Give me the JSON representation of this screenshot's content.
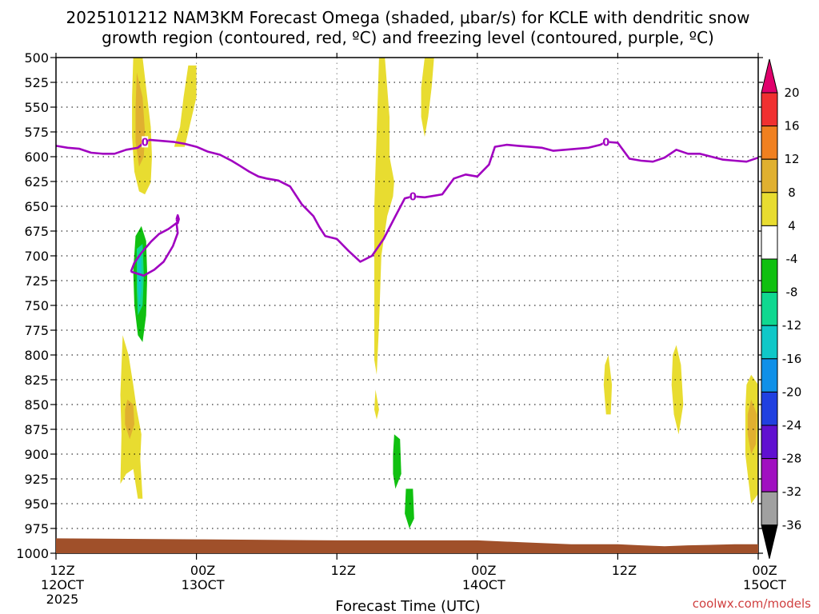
{
  "chart_data": {
    "type": "contour",
    "title_line1": "2025101212 NAM3KM Forecast Omega (shaded, μbar/s) for KCLE with dendritic snow",
    "title_line2": "growth region (contoured, red, ºC) and freezing level (contoured, purple, ºC)",
    "xlabel": "Forecast Time (UTC)",
    "credit": "coolwx.com/models",
    "y_ticks": [
      500,
      525,
      550,
      575,
      600,
      625,
      650,
      675,
      700,
      725,
      750,
      775,
      800,
      825,
      850,
      875,
      900,
      925,
      950,
      975,
      1000
    ],
    "y_range": [
      500,
      1000
    ],
    "x_range_hours": [
      0,
      60
    ],
    "x_ticks": [
      {
        "hour": 0,
        "line1": "12Z",
        "line2": "12OCT",
        "line3": "2025"
      },
      {
        "hour": 12,
        "line1": "00Z",
        "line2": "13OCT",
        "line3": ""
      },
      {
        "hour": 24,
        "line1": "12Z",
        "line2": "",
        "line3": ""
      },
      {
        "hour": 36,
        "line1": "00Z",
        "line2": "14OCT",
        "line3": ""
      },
      {
        "hour": 48,
        "line1": "12Z",
        "line2": "",
        "line3": ""
      },
      {
        "hour": 60,
        "line1": "00Z",
        "line2": "15OCT",
        "line3": ""
      }
    ],
    "colorbar": {
      "labels": [
        "20",
        "16",
        "12",
        "8",
        "4",
        "-4",
        "-8",
        "-12",
        "-16",
        "-20",
        "-24",
        "-28",
        "-32",
        "-36"
      ],
      "colors": [
        "#e0006c",
        "#f03030",
        "#f08020",
        "#e0b030",
        "#e8dc30",
        "#ffffff",
        "#10c010",
        "#10d890",
        "#10c8c8",
        "#1090e8",
        "#2040e0",
        "#6010d0",
        "#a010c0",
        "#a0a0a0",
        "#000000"
      ]
    },
    "freezing_level": {
      "color": "#a000c0",
      "label": "0",
      "points": [
        [
          0,
          589
        ],
        [
          1,
          591
        ],
        [
          2,
          592
        ],
        [
          3,
          596
        ],
        [
          4,
          597
        ],
        [
          5,
          597
        ],
        [
          6,
          593
        ],
        [
          7,
          591
        ],
        [
          7.6,
          585
        ],
        [
          8,
          583
        ],
        [
          9,
          584
        ],
        [
          10,
          585
        ],
        [
          11,
          587
        ],
        [
          12,
          590
        ],
        [
          13,
          595
        ],
        [
          14,
          598
        ],
        [
          15,
          604
        ],
        [
          15.7,
          609
        ],
        [
          16.5,
          615
        ],
        [
          17.3,
          620
        ],
        [
          18,
          622
        ],
        [
          19,
          624
        ],
        [
          20,
          630
        ],
        [
          21,
          648
        ],
        [
          22,
          660
        ],
        [
          22.5,
          671
        ],
        [
          23,
          680
        ],
        [
          24,
          683
        ],
        [
          25,
          695
        ],
        [
          26,
          706
        ],
        [
          27,
          700
        ],
        [
          28,
          683
        ],
        [
          29,
          660
        ],
        [
          29.8,
          642
        ],
        [
          30.5,
          640
        ],
        [
          31.5,
          641
        ],
        [
          33,
          638
        ],
        [
          34,
          622
        ],
        [
          35,
          618
        ],
        [
          36,
          620
        ],
        [
          37,
          608
        ],
        [
          37.5,
          590
        ],
        [
          38.5,
          588
        ],
        [
          39.5,
          589
        ],
        [
          40.5,
          590
        ],
        [
          41.5,
          591
        ],
        [
          42.5,
          594
        ],
        [
          43.5,
          593
        ],
        [
          44.5,
          592
        ],
        [
          45.5,
          591
        ],
        [
          46.5,
          588
        ],
        [
          47,
          585
        ],
        [
          48,
          586
        ],
        [
          49,
          602
        ],
        [
          50,
          604
        ],
        [
          51,
          605
        ],
        [
          52,
          601
        ],
        [
          53,
          593
        ],
        [
          54,
          597
        ],
        [
          55,
          597
        ],
        [
          56,
          600
        ],
        [
          57,
          603
        ],
        [
          58,
          604
        ],
        [
          59,
          605
        ],
        [
          60,
          601
        ]
      ]
    },
    "freezing_level_loops": [
      {
        "points": [
          [
            6.4,
            716
          ],
          [
            7.5,
            720
          ],
          [
            8.4,
            714
          ],
          [
            9.2,
            706
          ],
          [
            10,
            690
          ],
          [
            10.4,
            677
          ],
          [
            10.3,
            667
          ],
          [
            9.6,
            673
          ],
          [
            8.8,
            678
          ],
          [
            8.1,
            686
          ],
          [
            7.3,
            697
          ],
          [
            6.7,
            707
          ],
          [
            6.4,
            716
          ]
        ]
      },
      {
        "points": [
          [
            10.3,
            663
          ],
          [
            10.4,
            659
          ],
          [
            10.5,
            663
          ],
          [
            10.4,
            667
          ],
          [
            10.3,
            663
          ]
        ]
      }
    ],
    "zero_labels": [
      [
        7.6,
        585
      ],
      [
        30.5,
        640
      ],
      [
        47,
        585
      ]
    ],
    "shading": [
      {
        "value": 4,
        "color": "#e8dc30",
        "polys": [
          [
            [
              6.6,
              500
            ],
            [
              7.4,
              500
            ],
            [
              7.8,
              540
            ],
            [
              8.1,
              570
            ],
            [
              8.2,
              600
            ],
            [
              8.1,
              626
            ],
            [
              7.6,
              638
            ],
            [
              7.1,
              635
            ],
            [
              6.7,
              615
            ],
            [
              6.5,
              580
            ],
            [
              6.5,
              540
            ]
          ],
          [
            [
              10.1,
              590
            ],
            [
              10.6,
              570
            ],
            [
              10.9,
              540
            ],
            [
              11.3,
              508
            ],
            [
              12.0,
              508
            ],
            [
              12.0,
              540
            ],
            [
              11.5,
              565
            ],
            [
              11.0,
              590
            ]
          ],
          [
            [
              5.7,
              780
            ],
            [
              6.2,
              800
            ],
            [
              6.6,
              830
            ],
            [
              6.9,
              855
            ],
            [
              7.3,
              880
            ],
            [
              7.2,
              905
            ],
            [
              7.4,
              945
            ],
            [
              7.0,
              945
            ],
            [
              6.6,
              915
            ],
            [
              6.0,
              920
            ],
            [
              5.5,
              930
            ],
            [
              5.6,
              880
            ],
            [
              5.5,
              840
            ]
          ],
          [
            [
              27.6,
              500
            ],
            [
              28.1,
              500
            ],
            [
              28.5,
              560
            ],
            [
              28.5,
              600
            ],
            [
              28.9,
              625
            ],
            [
              28.8,
              640
            ],
            [
              28.3,
              660
            ],
            [
              27.8,
              700
            ],
            [
              27.6,
              770
            ],
            [
              27.4,
              820
            ],
            [
              27.2,
              805
            ],
            [
              27.2,
              760
            ],
            [
              27.2,
              700
            ],
            [
              27.2,
              650
            ]
          ],
          [
            [
              31.5,
              500
            ],
            [
              32.3,
              500
            ],
            [
              32.1,
              530
            ],
            [
              31.8,
              560
            ],
            [
              31.5,
              580
            ],
            [
              31.2,
              560
            ],
            [
              31.2,
              530
            ]
          ],
          [
            [
              47.2,
              800
            ],
            [
              47.5,
              830
            ],
            [
              47.4,
              860
            ],
            [
              47.0,
              860
            ],
            [
              46.8,
              830
            ],
            [
              46.9,
              810
            ]
          ],
          [
            [
              53.0,
              790
            ],
            [
              53.4,
              810
            ],
            [
              53.6,
              850
            ],
            [
              53.2,
              880
            ],
            [
              52.8,
              860
            ],
            [
              52.6,
              830
            ],
            [
              52.7,
              800
            ]
          ],
          [
            [
              59.4,
              820
            ],
            [
              60.0,
              830
            ],
            [
              60.0,
              940
            ],
            [
              59.4,
              950
            ],
            [
              58.9,
              900
            ],
            [
              58.9,
              855
            ],
            [
              59.0,
              830
            ]
          ],
          [
            [
              27.3,
              835
            ],
            [
              27.6,
              855
            ],
            [
              27.4,
              865
            ],
            [
              27.2,
              855
            ]
          ]
        ]
      },
      {
        "value": 8,
        "color": "#e0b030",
        "polys": [
          [
            [
              6.9,
              515
            ],
            [
              7.4,
              540
            ],
            [
              7.6,
              575
            ],
            [
              7.5,
              600
            ],
            [
              7.1,
              610
            ],
            [
              6.8,
              585
            ],
            [
              6.8,
              550
            ]
          ],
          [
            [
              6.1,
              845
            ],
            [
              6.6,
              850
            ],
            [
              6.7,
              870
            ],
            [
              6.3,
              885
            ],
            [
              5.9,
              870
            ],
            [
              5.9,
              855
            ]
          ],
          [
            [
              59.4,
              845
            ],
            [
              59.9,
              860
            ],
            [
              59.8,
              890
            ],
            [
              59.4,
              900
            ],
            [
              59.1,
              880
            ],
            [
              59.1,
              860
            ]
          ]
        ]
      },
      {
        "value": -4,
        "color": "#10c010",
        "polys": [
          [
            [
              6.8,
              680
            ],
            [
              7.3,
              670
            ],
            [
              7.7,
              685
            ],
            [
              7.8,
              720
            ],
            [
              7.7,
              760
            ],
            [
              7.4,
              787
            ],
            [
              7.0,
              780
            ],
            [
              6.7,
              750
            ],
            [
              6.6,
              715
            ]
          ],
          [
            [
              28.9,
              880
            ],
            [
              29.4,
              885
            ],
            [
              29.5,
              920
            ],
            [
              29.0,
              935
            ],
            [
              28.8,
              920
            ],
            [
              28.8,
              900
            ]
          ],
          [
            [
              29.9,
              935
            ],
            [
              30.5,
              935
            ],
            [
              30.6,
              965
            ],
            [
              30.2,
              975
            ],
            [
              29.8,
              960
            ]
          ]
        ]
      },
      {
        "value": -8,
        "color": "#10d890",
        "polys": [
          [
            [
              6.9,
              693
            ],
            [
              7.4,
              688
            ],
            [
              7.5,
              720
            ],
            [
              7.4,
              750
            ],
            [
              7.0,
              760
            ],
            [
              6.9,
              735
            ]
          ]
        ]
      },
      {
        "value": -12,
        "color": "#10c8c8",
        "polys": [
          [
            [
              7.0,
              700
            ],
            [
              7.3,
              702
            ],
            [
              7.3,
              735
            ],
            [
              7.1,
              750
            ],
            [
              7.0,
              730
            ]
          ]
        ]
      }
    ],
    "ground": {
      "color": "#a0502a",
      "top_pressures": [
        [
          0,
          985
        ],
        [
          12,
          986
        ],
        [
          24,
          987
        ],
        [
          36,
          987
        ],
        [
          40,
          989
        ],
        [
          44,
          991
        ],
        [
          48,
          991
        ],
        [
          50,
          992
        ],
        [
          52,
          993
        ],
        [
          54,
          992
        ],
        [
          58,
          991
        ],
        [
          60,
          991
        ]
      ]
    }
  }
}
